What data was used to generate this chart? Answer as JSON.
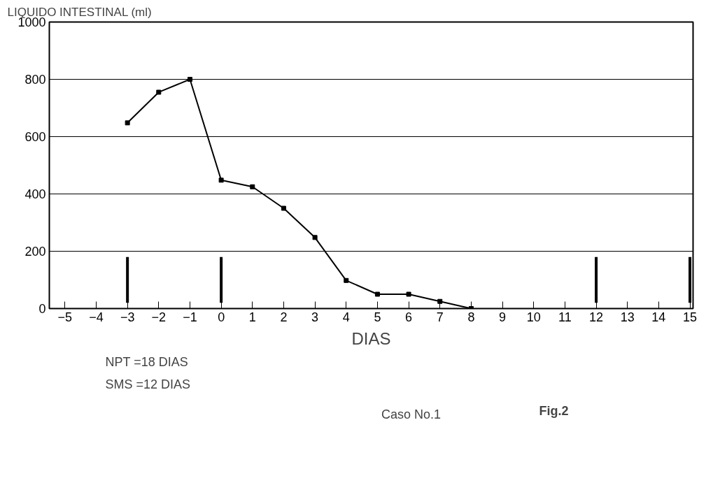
{
  "chart_data": {
    "type": "line",
    "ylabel": "LIQUIDO INTESTINAL (ml)",
    "xlabel": "DIAS",
    "x": [
      -3,
      -2,
      -1,
      0,
      1,
      2,
      3,
      4,
      5,
      6,
      7,
      8
    ],
    "series": [
      {
        "name": "Caso No.1",
        "color": "#000000",
        "values": [
          648,
          755,
          800,
          448,
          425,
          350,
          248,
          98,
          50,
          50,
          25,
          0
        ]
      }
    ],
    "xlim": [
      -5.5,
      15.1
    ],
    "xticks": [
      -5,
      -4,
      -3,
      -2,
      -1,
      0,
      1,
      2,
      3,
      4,
      5,
      6,
      7,
      8,
      9,
      10,
      11,
      12,
      13,
      14,
      15
    ],
    "ylim": [
      0,
      1000
    ],
    "yticks": [
      0,
      200,
      400,
      600,
      800,
      1000
    ],
    "grid": "y",
    "marker": "square",
    "line_style": "solid",
    "legend": "bottom",
    "ref_lines": [
      {
        "axis": "x",
        "value": -3,
        "label": null
      },
      {
        "axis": "x",
        "value": 0,
        "label": null
      },
      {
        "axis": "x",
        "value": 12,
        "label": null
      },
      {
        "axis": "x",
        "value": 15,
        "label": null
      }
    ],
    "annotations": [
      "NPT =18 DIAS",
      "SMS =12 DIAS",
      "Fig.2"
    ]
  }
}
